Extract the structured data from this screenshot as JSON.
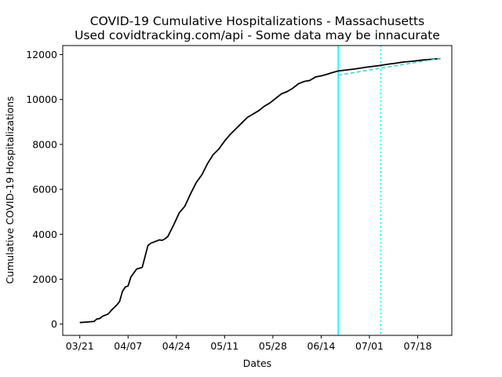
{
  "chart_data": {
    "type": "line",
    "title": "COVID-19 Cumulative Hospitalizations - Massachusetts",
    "subtitle": "Used covidtracking.com/api - Some data may be innacurate",
    "xlabel": "Dates",
    "ylabel": "Cumulative COVID-19 Hospitalizations",
    "x_tick_labels": [
      "03/21",
      "04/07",
      "04/24",
      "05/11",
      "05/28",
      "06/14",
      "07/01",
      "07/18"
    ],
    "y_ticks": [
      0,
      2000,
      4000,
      6000,
      8000,
      10000,
      12000
    ],
    "ylim": [
      -500,
      12400
    ],
    "xlim": [
      "2020-03-15",
      "2020-07-30"
    ],
    "grid": false,
    "series": [
      {
        "color": "#000000",
        "style": "solid",
        "x": [
          "2020-03-21",
          "2020-03-24",
          "2020-03-26",
          "2020-03-27",
          "2020-03-28",
          "2020-03-29",
          "2020-03-31",
          "2020-04-01",
          "2020-04-03",
          "2020-04-04",
          "2020-04-05",
          "2020-04-06",
          "2020-04-07",
          "2020-04-08",
          "2020-04-10",
          "2020-04-12",
          "2020-04-14",
          "2020-04-15",
          "2020-04-16",
          "2020-04-18",
          "2020-04-19",
          "2020-04-20",
          "2020-04-21",
          "2020-04-23",
          "2020-04-25",
          "2020-04-27",
          "2020-04-29",
          "2020-05-01",
          "2020-05-03",
          "2020-05-05",
          "2020-05-07",
          "2020-05-09",
          "2020-05-11",
          "2020-05-13",
          "2020-05-15",
          "2020-05-17",
          "2020-05-19",
          "2020-05-21",
          "2020-05-23",
          "2020-05-25",
          "2020-05-27",
          "2020-05-29",
          "2020-05-31",
          "2020-06-02",
          "2020-06-04",
          "2020-06-06",
          "2020-06-08",
          "2020-06-10",
          "2020-06-12",
          "2020-06-14",
          "2020-06-16",
          "2020-06-18",
          "2020-06-20",
          "2020-06-22",
          "2020-06-24",
          "2020-06-26",
          "2020-06-28",
          "2020-06-30",
          "2020-07-02",
          "2020-07-04",
          "2020-07-06",
          "2020-07-08",
          "2020-07-10",
          "2020-07-12",
          "2020-07-14",
          "2020-07-16",
          "2020-07-18",
          "2020-07-20",
          "2020-07-22",
          "2020-07-24",
          "2020-07-26"
        ],
        "values": [
          70,
          100,
          120,
          230,
          250,
          350,
          450,
          600,
          850,
          1000,
          1450,
          1650,
          1700,
          2100,
          2450,
          2530,
          3500,
          3600,
          3650,
          3750,
          3730,
          3800,
          3900,
          4400,
          4950,
          5250,
          5800,
          6300,
          6650,
          7150,
          7550,
          7800,
          8150,
          8450,
          8700,
          8950,
          9200,
          9350,
          9500,
          9700,
          9850,
          10050,
          10250,
          10350,
          10500,
          10700,
          10800,
          10850,
          11000,
          11050,
          11120,
          11200,
          11270,
          11300,
          11330,
          11360,
          11400,
          11440,
          11470,
          11500,
          11540,
          11580,
          11610,
          11650,
          11680,
          11700,
          11730,
          11760,
          11780,
          11800,
          11820
        ]
      },
      {
        "color": "#3fd1c7",
        "style": "dashed",
        "x": [
          "2020-06-20",
          "2020-07-26"
        ],
        "values": [
          11080,
          11830
        ]
      }
    ],
    "vertical_lines": [
      {
        "x": "2020-06-20",
        "color": "#00ffff",
        "style": "solid"
      },
      {
        "x": "2020-07-05",
        "color": "#00ffff",
        "style": "dotted"
      }
    ]
  }
}
